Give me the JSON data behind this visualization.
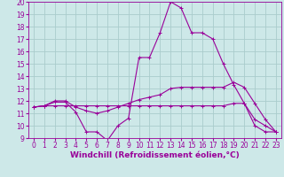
{
  "xlabel": "Windchill (Refroidissement éolien,°C)",
  "bg_color": "#cde8e8",
  "grid_color": "#aacccc",
  "line_color": "#990099",
  "xlim": [
    -0.5,
    23.5
  ],
  "ylim": [
    9,
    20
  ],
  "xtick_labels": [
    "0",
    "1",
    "2",
    "3",
    "4",
    "5",
    "6",
    "7",
    "8",
    "9",
    "10",
    "11",
    "12",
    "13",
    "14",
    "15",
    "16",
    "17",
    "18",
    "19",
    "20",
    "21",
    "22",
    "23"
  ],
  "xtick_vals": [
    0,
    1,
    2,
    3,
    4,
    5,
    6,
    7,
    8,
    9,
    10,
    11,
    12,
    13,
    14,
    15,
    16,
    17,
    18,
    19,
    20,
    21,
    22,
    23
  ],
  "ytick_vals": [
    9,
    10,
    11,
    12,
    13,
    14,
    15,
    16,
    17,
    18,
    19,
    20
  ],
  "line1_x": [
    0,
    1,
    2,
    3,
    4,
    5,
    6,
    7,
    8,
    9,
    10,
    11,
    12,
    13,
    14,
    15,
    16,
    17,
    18,
    19,
    20,
    21,
    22,
    23
  ],
  "line1_y": [
    11.5,
    11.6,
    11.9,
    11.9,
    11.1,
    9.5,
    9.5,
    8.8,
    10.0,
    10.6,
    15.5,
    15.5,
    17.5,
    20.0,
    19.5,
    17.5,
    17.5,
    17.0,
    15.0,
    13.3,
    11.8,
    10.5,
    10.0,
    9.5
  ],
  "line2_x": [
    0,
    1,
    2,
    3,
    4,
    5,
    6,
    7,
    8,
    9,
    10,
    11,
    12,
    13,
    14,
    15,
    16,
    17,
    18,
    19,
    20,
    21,
    22,
    23
  ],
  "line2_y": [
    11.5,
    11.6,
    12.0,
    12.0,
    11.5,
    11.2,
    11.0,
    11.2,
    11.5,
    11.8,
    12.1,
    12.3,
    12.5,
    13.0,
    13.1,
    13.1,
    13.1,
    13.1,
    13.1,
    13.5,
    13.1,
    11.8,
    10.5,
    9.5
  ],
  "line3_x": [
    0,
    1,
    2,
    3,
    4,
    5,
    6,
    7,
    8,
    9,
    10,
    11,
    12,
    13,
    14,
    15,
    16,
    17,
    18,
    19,
    20,
    21,
    22,
    23
  ],
  "line3_y": [
    11.5,
    11.6,
    11.6,
    11.6,
    11.6,
    11.6,
    11.6,
    11.6,
    11.6,
    11.6,
    11.6,
    11.6,
    11.6,
    11.6,
    11.6,
    11.6,
    11.6,
    11.6,
    11.6,
    11.8,
    11.8,
    10.0,
    9.5,
    9.5
  ],
  "marker": "+",
  "marker_size": 3,
  "linewidth": 0.8,
  "xlabel_fontsize": 6.5,
  "tick_fontsize": 5.5
}
